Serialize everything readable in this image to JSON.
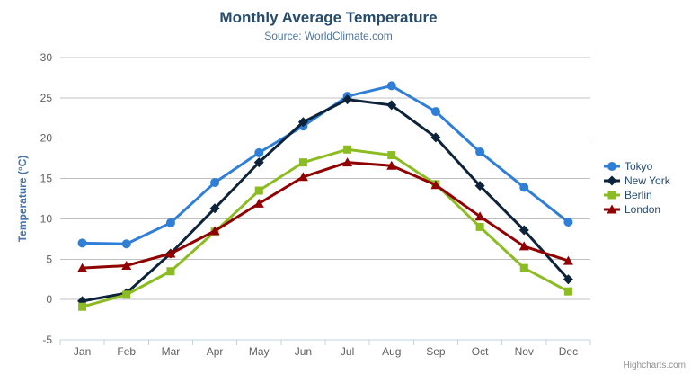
{
  "chart_data": {
    "type": "line",
    "title": "Monthly Average Temperature",
    "subtitle": "Source: WorldClimate.com",
    "categories": [
      "Jan",
      "Feb",
      "Mar",
      "Apr",
      "May",
      "Jun",
      "Jul",
      "Aug",
      "Sep",
      "Oct",
      "Nov",
      "Dec"
    ],
    "xlabel": "",
    "ylabel": "Temperature (°C)",
    "ylim": [
      -5,
      30
    ],
    "ytick_interval": 5,
    "grid": true,
    "legend_position": "right",
    "series": [
      {
        "name": "Tokyo",
        "color": "#2f7ed8",
        "marker": "circle",
        "values": [
          7.0,
          6.9,
          9.5,
          14.5,
          18.2,
          21.5,
          25.2,
          26.5,
          23.3,
          18.3,
          13.9,
          9.6
        ]
      },
      {
        "name": "New York",
        "color": "#0d233a",
        "marker": "diamond",
        "values": [
          -0.2,
          0.8,
          5.7,
          11.3,
          17.0,
          22.0,
          24.8,
          24.1,
          20.1,
          14.1,
          8.6,
          2.5
        ]
      },
      {
        "name": "Berlin",
        "color": "#8bbc21",
        "marker": "square",
        "values": [
          -0.9,
          0.6,
          3.5,
          8.4,
          13.5,
          17.0,
          18.6,
          17.9,
          14.3,
          9.0,
          3.9,
          1.0
        ]
      },
      {
        "name": "London",
        "color": "#910000",
        "marker": "triangle",
        "values": [
          3.9,
          4.2,
          5.7,
          8.5,
          11.9,
          15.2,
          17.0,
          16.6,
          14.2,
          10.3,
          6.6,
          4.8
        ]
      }
    ]
  },
  "credits": {
    "label": "Highcharts.com"
  },
  "icons": {
    "context_menu": "hamburger-icon"
  },
  "colors": {
    "title": "#274b6d",
    "subtitle": "#4d759e",
    "axis_label": "#606060",
    "y_axis_title": "#4572a7",
    "grid_line": "#c0c0c0",
    "axis_line": "#c0d0e0",
    "legend_text": "#274b6d",
    "credits_text": "#909090",
    "menu_icon": "#666666"
  }
}
